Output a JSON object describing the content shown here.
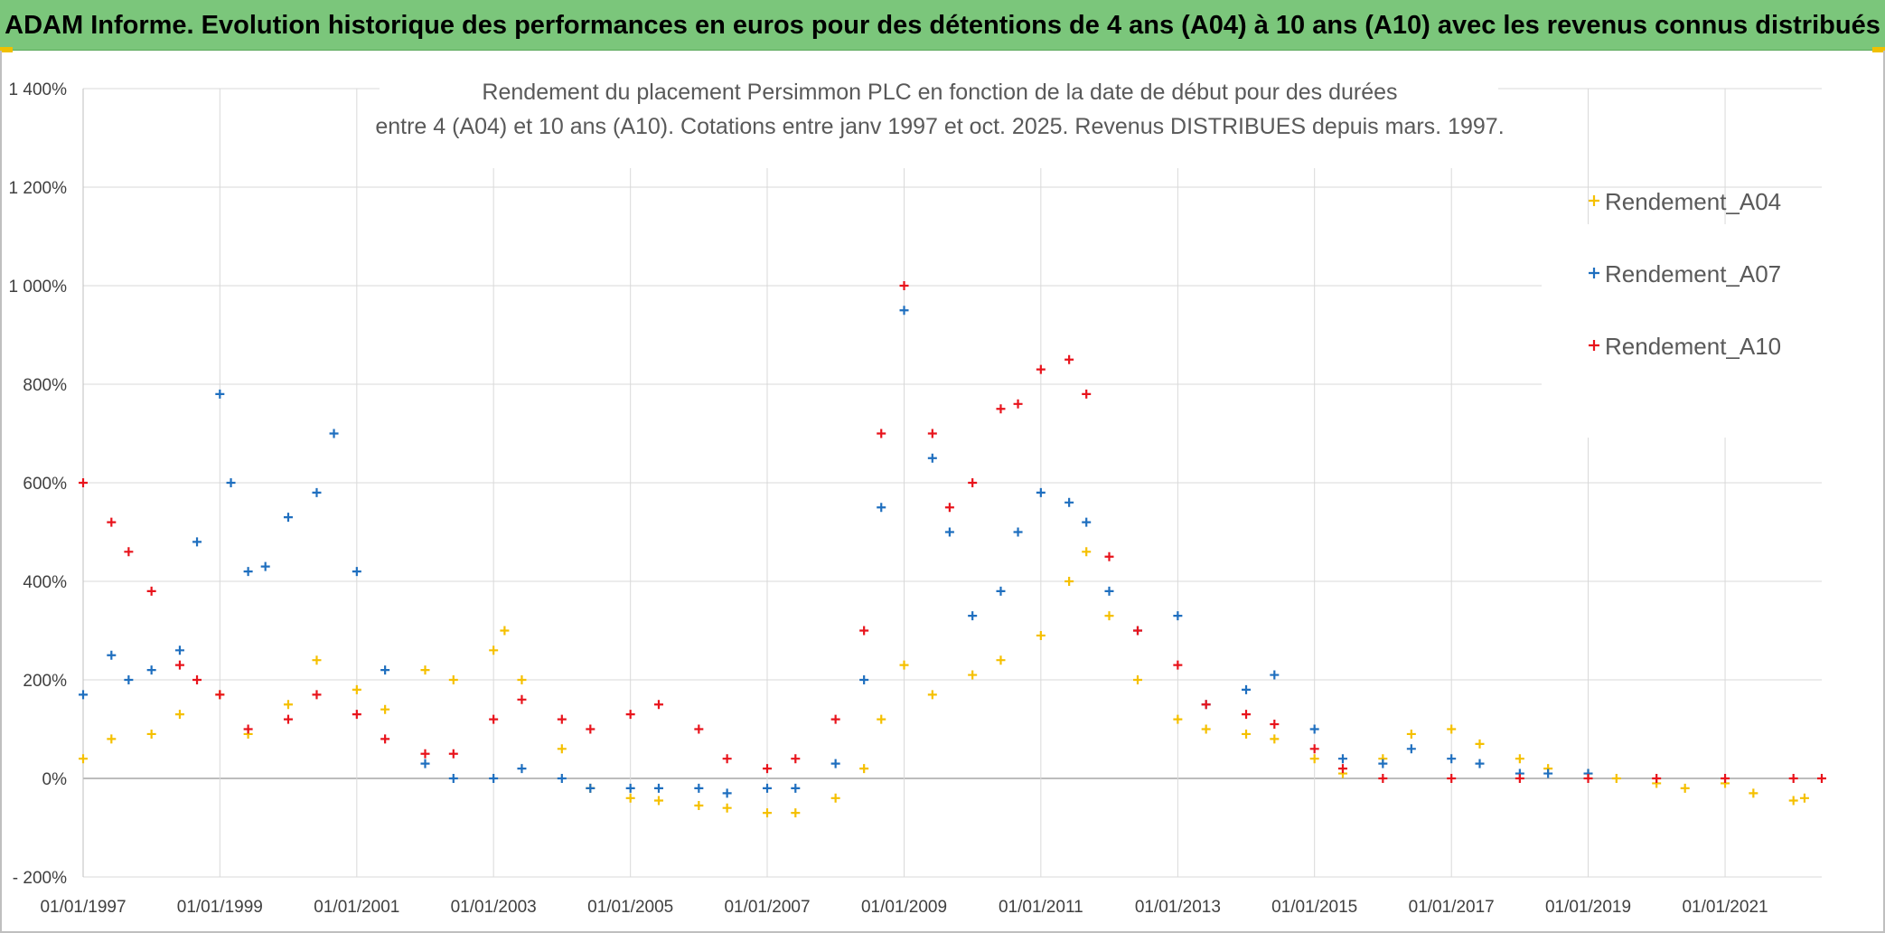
{
  "header": {
    "banner_title": "ADAM Informe. Evolution historique des performances en euros pour des détentions de 4 ans (A04) à 10 ans (A10) avec les revenus connus distribués"
  },
  "colors": {
    "banner_bg": "#7bc67b",
    "A04": "#f5c000",
    "A07": "#1f6fbf",
    "A10": "#e8141c",
    "grid": "#d9d9d9"
  },
  "chart_data": {
    "type": "scatter",
    "title_line1": "Rendement du placement Persimmon PLC en fonction de la date de début pour des durées",
    "title_line2": "entre 4 (A04) et 10 ans (A10). Cotations entre janv 1997 et oct. 2025. Revenus DISTRIBUES depuis mars. 1997.",
    "xlabel": "",
    "ylabel": "",
    "x_axis": {
      "type": "date",
      "range": [
        "1997-01-01",
        "2022-06-01"
      ],
      "tick_labels": [
        "01/01/1997",
        "01/01/1999",
        "01/01/2001",
        "01/01/2003",
        "01/01/2005",
        "01/01/2007",
        "01/01/2009",
        "01/01/2011",
        "01/01/2013",
        "01/01/2015",
        "01/01/2017",
        "01/01/2019",
        "01/01/2021"
      ]
    },
    "y_axis": {
      "unit": "%",
      "range": [
        -200,
        1400
      ],
      "ticks": [
        -200,
        0,
        200,
        400,
        600,
        800,
        1000,
        1200,
        1400
      ],
      "tick_labels": [
        "- 200%",
        "0%",
        "200%",
        "400%",
        "600%",
        "800%",
        "1 000%",
        "1 200%",
        "1 400%"
      ]
    },
    "grid": true,
    "legend_position": "top-right",
    "marker": "plus",
    "series": [
      {
        "name": "Rendement_A04",
        "points": [
          [
            "1997-01-01",
            40
          ],
          [
            "1997-06-01",
            80
          ],
          [
            "1998-01-01",
            90
          ],
          [
            "1998-06-01",
            130
          ],
          [
            "1999-01-01",
            170
          ],
          [
            "1999-06-01",
            90
          ],
          [
            "2000-01-01",
            150
          ],
          [
            "2000-06-01",
            240
          ],
          [
            "2001-01-01",
            180
          ],
          [
            "2001-06-01",
            140
          ],
          [
            "2002-01-01",
            220
          ],
          [
            "2002-06-01",
            200
          ],
          [
            "2003-01-01",
            260
          ],
          [
            "2003-03-01",
            300
          ],
          [
            "2003-06-01",
            200
          ],
          [
            "2004-01-01",
            60
          ],
          [
            "2004-06-01",
            -20
          ],
          [
            "2005-01-01",
            -40
          ],
          [
            "2005-06-01",
            -45
          ],
          [
            "2006-01-01",
            -55
          ],
          [
            "2006-06-01",
            -60
          ],
          [
            "2007-01-01",
            -70
          ],
          [
            "2007-06-01",
            -70
          ],
          [
            "2008-01-01",
            -40
          ],
          [
            "2008-06-01",
            20
          ],
          [
            "2008-09-01",
            120
          ],
          [
            "2009-01-01",
            230
          ],
          [
            "2009-06-01",
            170
          ],
          [
            "2010-01-01",
            210
          ],
          [
            "2010-06-01",
            240
          ],
          [
            "2011-01-01",
            290
          ],
          [
            "2011-06-01",
            400
          ],
          [
            "2011-09-01",
            460
          ],
          [
            "2012-01-01",
            330
          ],
          [
            "2012-06-01",
            200
          ],
          [
            "2013-01-01",
            120
          ],
          [
            "2013-06-01",
            100
          ],
          [
            "2014-01-01",
            90
          ],
          [
            "2014-06-01",
            80
          ],
          [
            "2015-01-01",
            40
          ],
          [
            "2015-06-01",
            10
          ],
          [
            "2016-01-01",
            40
          ],
          [
            "2016-06-01",
            90
          ],
          [
            "2017-01-01",
            100
          ],
          [
            "2017-06-01",
            70
          ],
          [
            "2018-01-01",
            40
          ],
          [
            "2018-06-01",
            20
          ],
          [
            "2019-01-01",
            10
          ],
          [
            "2019-06-01",
            0
          ],
          [
            "2020-01-01",
            -10
          ],
          [
            "2020-06-01",
            -20
          ],
          [
            "2021-01-01",
            -10
          ],
          [
            "2021-06-01",
            -30
          ],
          [
            "2022-01-01",
            -45
          ],
          [
            "2022-03-01",
            -40
          ]
        ]
      },
      {
        "name": "Rendement_A07",
        "points": [
          [
            "1997-01-01",
            170
          ],
          [
            "1997-06-01",
            250
          ],
          [
            "1997-09-01",
            200
          ],
          [
            "1998-01-01",
            220
          ],
          [
            "1998-06-01",
            260
          ],
          [
            "1998-09-01",
            480
          ],
          [
            "1999-01-01",
            780
          ],
          [
            "1999-03-01",
            600
          ],
          [
            "1999-06-01",
            420
          ],
          [
            "1999-09-01",
            430
          ],
          [
            "2000-01-01",
            530
          ],
          [
            "2000-06-01",
            580
          ],
          [
            "2000-09-01",
            700
          ],
          [
            "2001-01-01",
            420
          ],
          [
            "2001-06-01",
            220
          ],
          [
            "2002-01-01",
            30
          ],
          [
            "2002-06-01",
            0
          ],
          [
            "2003-01-01",
            0
          ],
          [
            "2003-06-01",
            20
          ],
          [
            "2004-01-01",
            0
          ],
          [
            "2004-06-01",
            -20
          ],
          [
            "2005-01-01",
            -20
          ],
          [
            "2005-06-01",
            -20
          ],
          [
            "2006-01-01",
            -20
          ],
          [
            "2006-06-01",
            -30
          ],
          [
            "2007-01-01",
            -20
          ],
          [
            "2007-06-01",
            -20
          ],
          [
            "2008-01-01",
            30
          ],
          [
            "2008-06-01",
            200
          ],
          [
            "2008-09-01",
            550
          ],
          [
            "2009-01-01",
            950
          ],
          [
            "2009-06-01",
            650
          ],
          [
            "2009-09-01",
            500
          ],
          [
            "2010-01-01",
            330
          ],
          [
            "2010-06-01",
            380
          ],
          [
            "2010-09-01",
            500
          ],
          [
            "2011-01-01",
            580
          ],
          [
            "2011-06-01",
            560
          ],
          [
            "2011-09-01",
            520
          ],
          [
            "2012-01-01",
            380
          ],
          [
            "2012-06-01",
            300
          ],
          [
            "2013-01-01",
            330
          ],
          [
            "2013-06-01",
            150
          ],
          [
            "2014-01-01",
            180
          ],
          [
            "2014-06-01",
            210
          ],
          [
            "2015-01-01",
            100
          ],
          [
            "2015-06-01",
            40
          ],
          [
            "2016-01-01",
            30
          ],
          [
            "2016-06-01",
            60
          ],
          [
            "2017-01-01",
            40
          ],
          [
            "2017-06-01",
            30
          ],
          [
            "2018-01-01",
            10
          ],
          [
            "2018-06-01",
            10
          ],
          [
            "2019-01-01",
            10
          ]
        ]
      },
      {
        "name": "Rendement_A10",
        "points": [
          [
            "1997-01-01",
            600
          ],
          [
            "1997-06-01",
            520
          ],
          [
            "1997-09-01",
            460
          ],
          [
            "1998-01-01",
            380
          ],
          [
            "1998-06-01",
            230
          ],
          [
            "1998-09-01",
            200
          ],
          [
            "1999-01-01",
            170
          ],
          [
            "1999-06-01",
            100
          ],
          [
            "2000-01-01",
            120
          ],
          [
            "2000-06-01",
            170
          ],
          [
            "2001-01-01",
            130
          ],
          [
            "2001-06-01",
            80
          ],
          [
            "2002-01-01",
            50
          ],
          [
            "2002-06-01",
            50
          ],
          [
            "2003-01-01",
            120
          ],
          [
            "2003-06-01",
            160
          ],
          [
            "2004-01-01",
            120
          ],
          [
            "2004-06-01",
            100
          ],
          [
            "2005-01-01",
            130
          ],
          [
            "2005-06-01",
            150
          ],
          [
            "2006-01-01",
            100
          ],
          [
            "2006-06-01",
            40
          ],
          [
            "2007-01-01",
            20
          ],
          [
            "2007-06-01",
            40
          ],
          [
            "2008-01-01",
            120
          ],
          [
            "2008-06-01",
            300
          ],
          [
            "2008-09-01",
            700
          ],
          [
            "2009-01-01",
            1000
          ],
          [
            "2009-06-01",
            700
          ],
          [
            "2009-09-01",
            550
          ],
          [
            "2010-01-01",
            600
          ],
          [
            "2010-06-01",
            750
          ],
          [
            "2010-09-01",
            760
          ],
          [
            "2011-01-01",
            830
          ],
          [
            "2011-06-01",
            850
          ],
          [
            "2011-09-01",
            780
          ],
          [
            "2012-01-01",
            450
          ],
          [
            "2012-06-01",
            300
          ],
          [
            "2013-01-01",
            230
          ],
          [
            "2013-06-01",
            150
          ],
          [
            "2014-01-01",
            130
          ],
          [
            "2014-06-01",
            110
          ],
          [
            "2015-01-01",
            60
          ],
          [
            "2015-06-01",
            20
          ],
          [
            "2016-01-01",
            0
          ],
          [
            "2017-01-01",
            0
          ],
          [
            "2018-01-01",
            0
          ],
          [
            "2019-01-01",
            0
          ],
          [
            "2020-01-01",
            0
          ],
          [
            "2021-01-01",
            0
          ],
          [
            "2022-01-01",
            0
          ],
          [
            "2022-06-01",
            0
          ]
        ]
      }
    ]
  }
}
